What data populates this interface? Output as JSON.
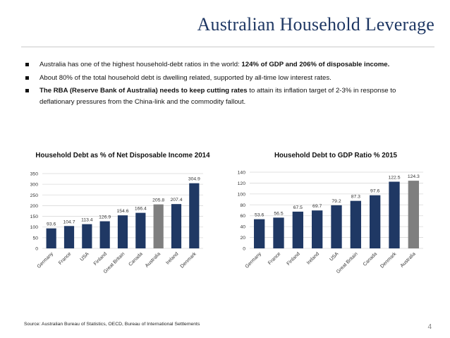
{
  "header": {
    "title": "Australian Household Leverage"
  },
  "bullets": [
    {
      "pre": "Australia has one of the highest household-debt ratios in the world: ",
      "bold": "124% of GDP and 206% of disposable income.",
      "post": ""
    },
    {
      "pre": "About 80% of the total household debt is dwelling related, supported by all-time low interest rates.",
      "bold": "",
      "post": ""
    },
    {
      "pre": "",
      "bold": "The RBA (Reserve Bank of Australia) needs to keep cutting rates",
      "post": " to attain its inflation target of 2-3% in response to deflationary pressures from the China-link and the commodity fallout."
    }
  ],
  "chart_data": [
    {
      "type": "bar",
      "title": "Household Debt as % of Net Disposable Income 2014",
      "categories": [
        "Germany",
        "France",
        "USA",
        "Finland",
        "Great Britain",
        "Canada",
        "Australia",
        "Ireland",
        "Denmark"
      ],
      "values": [
        93.6,
        104.7,
        113.4,
        126.9,
        154.6,
        166.4,
        205.8,
        207.4,
        304.9
      ],
      "value_labels": [
        "93.6",
        "104.7",
        "113.4",
        "126.9",
        "154.6",
        "166.4",
        "205.8",
        "207.4",
        "304.9"
      ],
      "highlight": "Australia",
      "ylim": [
        0,
        350
      ],
      "yticks": [
        0,
        50,
        100,
        150,
        200,
        250,
        300,
        350
      ],
      "grid": true,
      "xlabel": "",
      "ylabel": ""
    },
    {
      "type": "bar",
      "title": "Household Debt to GDP Ratio % 2015",
      "categories": [
        "Germany",
        "France",
        "Finland",
        "Ireland",
        "USA",
        "Great Britain",
        "Canada",
        "Denmark",
        "Australia"
      ],
      "values": [
        53.6,
        56.5,
        67.5,
        69.7,
        79.2,
        87.3,
        97.6,
        122.5,
        124.3
      ],
      "value_labels": [
        "53.6",
        "56.5",
        "67.5",
        "69.7",
        "79.2",
        "87.3",
        "97.6",
        "122.5",
        "124.3"
      ],
      "highlight": "Australia",
      "ylim": [
        0,
        140
      ],
      "yticks": [
        0,
        20,
        40,
        60,
        80,
        100,
        120,
        140
      ],
      "grid": true,
      "xlabel": "",
      "ylabel": ""
    }
  ],
  "colors": {
    "bar": "#1f3864",
    "highlight": "#7f7f7f",
    "grid": "#d9d9d9",
    "title": "#1f3864"
  },
  "footer": {
    "source": "Source: Australian Bureau of Statistics, OECD, Bureau of International Settlements",
    "page_number": "4"
  }
}
